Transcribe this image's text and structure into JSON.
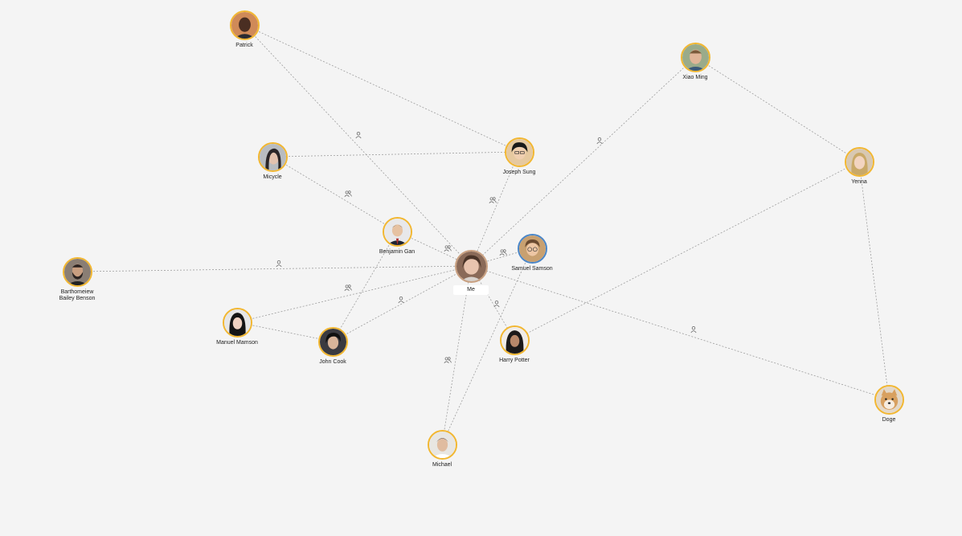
{
  "colors": {
    "background": "#f4f4f4",
    "avatar_ring": "#f2b731",
    "avatar_ring_blue": "#4a86c8",
    "edge": "#9e9e9e",
    "label_text": "#222222"
  },
  "me": {
    "label": "Me"
  },
  "people": {
    "patrick": {
      "label": "Patrick"
    },
    "xiao_ming": {
      "label": "Xiao Ming"
    },
    "joseph_sung": {
      "label": "Joseph Sung"
    },
    "micycle": {
      "label": "Micycle"
    },
    "yenna": {
      "label": "Yenna"
    },
    "benjamin_gan": {
      "label": "Benjamin Gan"
    },
    "samuel_samson": {
      "label": "Samuel Samson"
    },
    "barthomeiew": {
      "label": "Barthomeiew\nBailey Benson"
    },
    "manuel_mamson": {
      "label": "Manuel Mamson"
    },
    "john_cook": {
      "label": "John Cook"
    },
    "harry_potter": {
      "label": "Harry Potter"
    },
    "doge": {
      "label": "Doge"
    },
    "michael": {
      "label": "Michael"
    }
  },
  "edge_icons": {
    "single": "person-icon",
    "group": "people-icon"
  }
}
